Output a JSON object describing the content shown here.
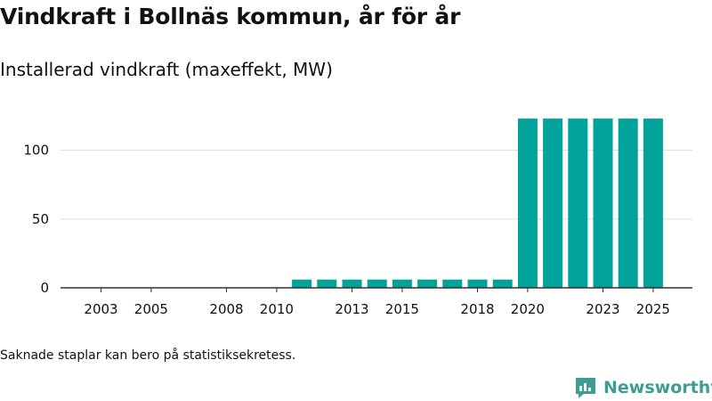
{
  "title": "Vindkraft i Bollnäs kommun, år för år",
  "subtitle": "Installerad vindkraft (maxeffekt, MW)",
  "footnote": "Saknade staplar kan bero på statistiksekretess.",
  "brand": {
    "name": "Newsworthy",
    "icon": "newsworthy-logo-icon",
    "color": "#3f9c93"
  },
  "colors": {
    "bar": "#00a39a",
    "grid": "#dddddd",
    "axis": "#333333"
  },
  "chart_data": {
    "type": "bar",
    "title": "Vindkraft i Bollnäs kommun, år för år",
    "subtitle": "Installerad vindkraft (maxeffekt, MW)",
    "xlabel": "",
    "ylabel": "",
    "categories": [
      2003,
      2004,
      2005,
      2006,
      2007,
      2008,
      2009,
      2010,
      2011,
      2012,
      2013,
      2014,
      2015,
      2016,
      2017,
      2018,
      2019,
      2020,
      2021,
      2022,
      2023,
      2024,
      2025
    ],
    "values": [
      null,
      null,
      null,
      null,
      null,
      null,
      null,
      null,
      6,
      6,
      6,
      6,
      6,
      6,
      6,
      6,
      6,
      123,
      123,
      123,
      123,
      123,
      123
    ],
    "ylim": [
      0,
      125
    ],
    "yticks": [
      0,
      50,
      100
    ],
    "xtick_labels": [
      2003,
      2005,
      2008,
      2010,
      2013,
      2015,
      2018,
      2020,
      2023,
      2025
    ],
    "grid": true,
    "legend": "none"
  }
}
